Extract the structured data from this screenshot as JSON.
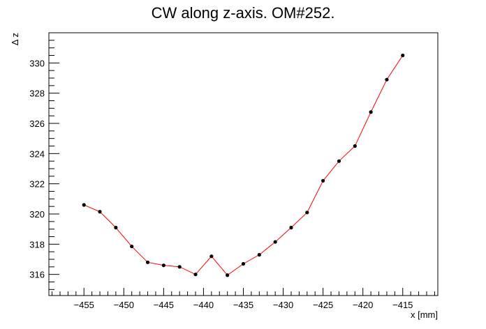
{
  "chart_data": {
    "type": "line",
    "title": "CW along z-axis. OM#252.",
    "xlabel": "x [mm]",
    "ylabel": "Δ z",
    "xlim": [
      -459.4,
      -410.6
    ],
    "ylim": [
      314.6,
      332.0
    ],
    "x_ticks": [
      -455,
      -450,
      -445,
      -440,
      -435,
      -430,
      -425,
      -420,
      -415
    ],
    "y_ticks": [
      316,
      318,
      320,
      322,
      324,
      326,
      328,
      330
    ],
    "grid": false,
    "line_color": "#ff0000",
    "marker_color": "#000000",
    "series": [
      {
        "x": [
          -455,
          -453,
          -451,
          -449,
          -447,
          -445,
          -443,
          -441,
          -439,
          -437,
          -435,
          -433,
          -431,
          -429,
          -427,
          -425,
          -423,
          -421,
          -419,
          -417,
          -415
        ],
        "y": [
          320.6,
          320.15,
          319.1,
          317.85,
          316.8,
          316.6,
          316.5,
          316.0,
          317.2,
          315.95,
          316.7,
          317.3,
          318.15,
          319.1,
          320.1,
          322.2,
          323.5,
          324.5,
          326.75,
          328.9,
          330.5
        ]
      }
    ]
  }
}
